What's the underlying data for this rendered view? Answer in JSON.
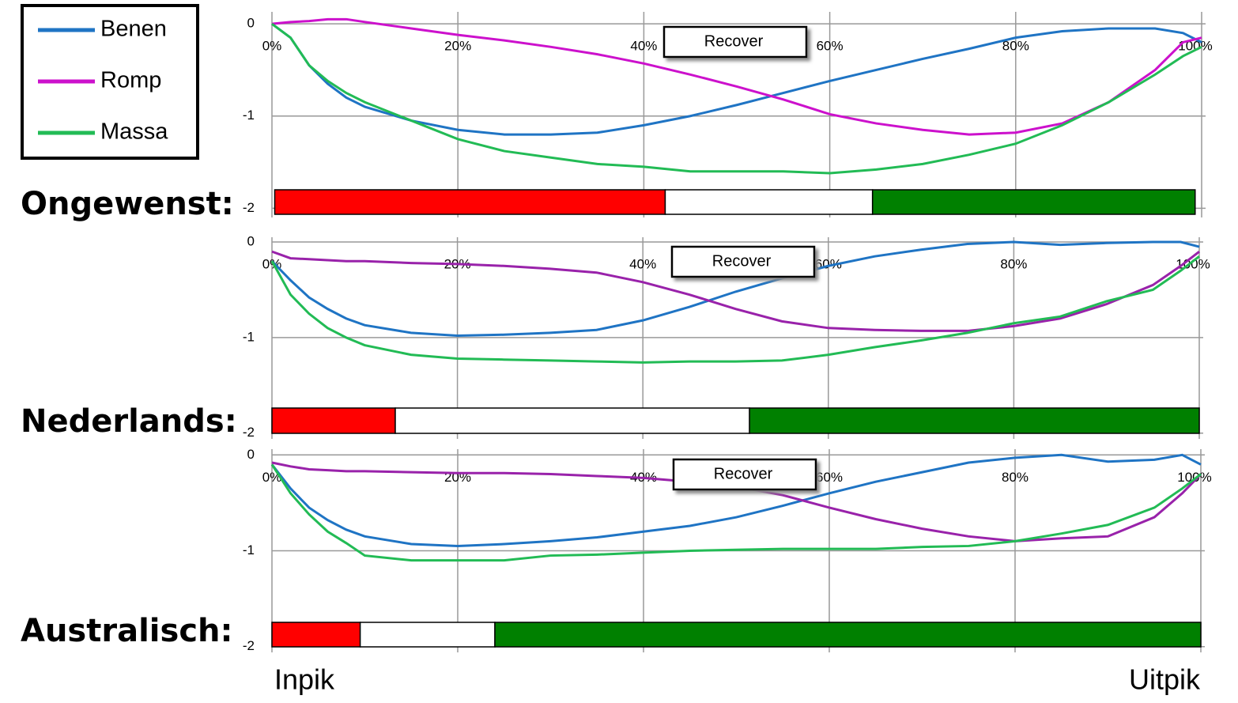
{
  "chart_data": [
    {
      "type": "line",
      "title": "Ongewenst:",
      "annotation": "Recover",
      "x": [
        0,
        2,
        4,
        6,
        8,
        10,
        15,
        20,
        25,
        30,
        35,
        40,
        45,
        50,
        55,
        60,
        65,
        70,
        75,
        80,
        85,
        90,
        95,
        98,
        100
      ],
      "series": [
        {
          "name": "Benen",
          "color": "#1f74c4",
          "values": [
            0,
            -0.15,
            -0.45,
            -0.65,
            -0.8,
            -0.9,
            -1.05,
            -1.15,
            -1.2,
            -1.2,
            -1.18,
            -1.1,
            -1.0,
            -0.88,
            -0.75,
            -0.62,
            -0.5,
            -0.38,
            -0.27,
            -0.15,
            -0.08,
            -0.05,
            -0.05,
            -0.1,
            -0.2
          ]
        },
        {
          "name": "Romp",
          "color": "#cc11cc",
          "values": [
            0,
            0.02,
            0.03,
            0.05,
            0.05,
            0.02,
            -0.05,
            -0.12,
            -0.18,
            -0.25,
            -0.33,
            -0.43,
            -0.55,
            -0.68,
            -0.82,
            -0.98,
            -1.08,
            -1.15,
            -1.2,
            -1.18,
            -1.08,
            -0.85,
            -0.5,
            -0.2,
            -0.15
          ]
        },
        {
          "name": "Massa",
          "color": "#22bb55",
          "values": [
            0,
            -0.15,
            -0.45,
            -0.62,
            -0.75,
            -0.85,
            -1.05,
            -1.25,
            -1.38,
            -1.45,
            -1.52,
            -1.55,
            -1.6,
            -1.6,
            -1.6,
            -1.62,
            -1.58,
            -1.52,
            -1.42,
            -1.3,
            -1.1,
            -0.85,
            -0.55,
            -0.35,
            -0.25
          ]
        }
      ],
      "xlim": [
        0,
        100
      ],
      "ylim": [
        -2.1,
        0.13
      ],
      "xticks": [
        {
          "value": 0,
          "label": "0%"
        },
        {
          "value": 20,
          "label": "20%"
        },
        {
          "value": 40,
          "label": "40%"
        },
        {
          "value": 60,
          "label": "60%"
        },
        {
          "value": 80,
          "label": "80%"
        },
        {
          "value": 100,
          "label": "100%"
        }
      ],
      "yticks": [
        0,
        -1,
        -2
      ],
      "grid": true,
      "phases": {
        "colors": [
          "#ff0000",
          "#ffffff",
          "#008000"
        ],
        "edges": [
          0.3,
          42.3,
          64.6,
          99.3
        ]
      }
    },
    {
      "type": "line",
      "title": "Nederlands:",
      "annotation": "Recover",
      "x": [
        0,
        2,
        4,
        6,
        8,
        10,
        15,
        20,
        25,
        30,
        35,
        40,
        45,
        50,
        55,
        60,
        65,
        70,
        75,
        80,
        85,
        90,
        95,
        98,
        100
      ],
      "series": [
        {
          "name": "Benen",
          "color": "#1f74c4",
          "values": [
            -0.2,
            -0.4,
            -0.58,
            -0.7,
            -0.8,
            -0.87,
            -0.95,
            -0.98,
            -0.97,
            -0.95,
            -0.92,
            -0.82,
            -0.68,
            -0.52,
            -0.38,
            -0.25,
            -0.15,
            -0.08,
            -0.02,
            0,
            -0.03,
            -0.01,
            0,
            0,
            -0.05
          ]
        },
        {
          "name": "Romp",
          "color": "#9922aa",
          "values": [
            -0.1,
            -0.17,
            -0.18,
            -0.19,
            -0.2,
            -0.2,
            -0.22,
            -0.23,
            -0.25,
            -0.28,
            -0.32,
            -0.42,
            -0.55,
            -0.7,
            -0.83,
            -0.9,
            -0.92,
            -0.93,
            -0.93,
            -0.88,
            -0.8,
            -0.65,
            -0.45,
            -0.25,
            -0.1
          ]
        },
        {
          "name": "Massa",
          "color": "#22bb55",
          "values": [
            -0.2,
            -0.55,
            -0.75,
            -0.9,
            -1.0,
            -1.08,
            -1.18,
            -1.22,
            -1.23,
            -1.24,
            -1.25,
            -1.26,
            -1.25,
            -1.25,
            -1.24,
            -1.18,
            -1.1,
            -1.03,
            -0.95,
            -0.85,
            -0.78,
            -0.62,
            -0.5,
            -0.3,
            -0.15
          ]
        }
      ],
      "xlim": [
        0,
        100
      ],
      "ylim": [
        -2.06,
        0.05
      ],
      "xticks": [
        {
          "value": 0,
          "label": "0%"
        },
        {
          "value": 20,
          "label": "20%"
        },
        {
          "value": 40,
          "label": "40%"
        },
        {
          "value": 60,
          "label": "60%"
        },
        {
          "value": 80,
          "label": "80%"
        },
        {
          "value": 100,
          "label": "100%"
        }
      ],
      "yticks": [
        0,
        -1,
        -2
      ],
      "grid": true,
      "phases": {
        "colors": [
          "#ff0000",
          "#ffffff",
          "#008000"
        ],
        "edges": [
          0,
          13.3,
          51.5,
          100
        ]
      }
    },
    {
      "type": "line",
      "title": "Australisch:",
      "annotation": "Recover",
      "x": [
        0,
        2,
        4,
        6,
        8,
        10,
        15,
        20,
        25,
        30,
        35,
        40,
        45,
        50,
        55,
        60,
        65,
        70,
        75,
        80,
        85,
        90,
        95,
        98,
        100
      ],
      "series": [
        {
          "name": "Benen",
          "color": "#1f74c4",
          "values": [
            -0.1,
            -0.35,
            -0.55,
            -0.68,
            -0.78,
            -0.85,
            -0.93,
            -0.95,
            -0.93,
            -0.9,
            -0.86,
            -0.8,
            -0.74,
            -0.65,
            -0.53,
            -0.4,
            -0.28,
            -0.18,
            -0.08,
            -0.03,
            0,
            -0.07,
            -0.05,
            0,
            -0.1
          ]
        },
        {
          "name": "Romp",
          "color": "#9922aa",
          "values": [
            -0.08,
            -0.12,
            -0.15,
            -0.16,
            -0.17,
            -0.17,
            -0.18,
            -0.19,
            -0.19,
            -0.2,
            -0.22,
            -0.24,
            -0.28,
            -0.33,
            -0.42,
            -0.55,
            -0.67,
            -0.77,
            -0.85,
            -0.9,
            -0.87,
            -0.85,
            -0.65,
            -0.4,
            -0.2
          ]
        },
        {
          "name": "Massa",
          "color": "#22bb55",
          "values": [
            -0.1,
            -0.4,
            -0.62,
            -0.8,
            -0.92,
            -1.05,
            -1.1,
            -1.1,
            -1.1,
            -1.05,
            -1.04,
            -1.02,
            -1.0,
            -0.99,
            -0.98,
            -0.98,
            -0.98,
            -0.96,
            -0.95,
            -0.9,
            -0.82,
            -0.73,
            -0.55,
            -0.35,
            -0.2
          ]
        }
      ],
      "xlim": [
        0,
        100
      ],
      "ylim": [
        -2.06,
        0.06
      ],
      "xticks": [
        {
          "value": 0,
          "label": "0%"
        },
        {
          "value": 20,
          "label": "20%"
        },
        {
          "value": 40,
          "label": "40%"
        },
        {
          "value": 60,
          "label": "60%"
        },
        {
          "value": 80,
          "label": "80%"
        },
        {
          "value": 100,
          "label": "100%"
        }
      ],
      "yticks": [
        0,
        -1,
        -2
      ],
      "grid": true,
      "phases": {
        "colors": [
          "#ff0000",
          "#ffffff",
          "#008000"
        ],
        "edges": [
          0,
          9.5,
          24,
          100
        ]
      }
    }
  ],
  "footer": {
    "left": "Inpik",
    "right": "Uitpik"
  }
}
